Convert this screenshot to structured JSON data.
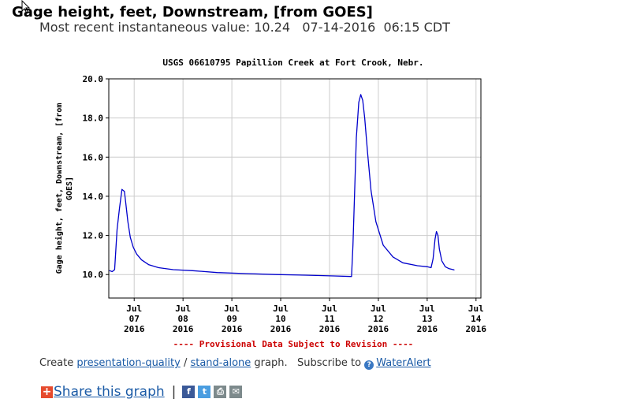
{
  "page": {
    "title": "Gage height, feet, Downstream, [from GOES]",
    "recent_label": "Most recent instantaneous value:",
    "recent_value": "10.24",
    "recent_date": "07-14-2016",
    "recent_time": "06:15 CDT"
  },
  "chart_data": {
    "type": "line",
    "title": "USGS 06610795 Papillion Creek at Fort Crook, Nebr.",
    "ylabel_lines": [
      "Gage height, feet, Downstream, [from",
      "GOES]"
    ],
    "ylim": [
      8.8,
      20.0
    ],
    "yticks": [
      "20.0",
      "18.0",
      "16.0",
      "14.0",
      "12.0",
      "10.0"
    ],
    "ytick_values": [
      20,
      18,
      16,
      14,
      12,
      10
    ],
    "xlim": [
      -0.02,
      7.6
    ],
    "xticks": [
      {
        "pos": 0.5,
        "month": "Jul",
        "day": "07",
        "year": "2016"
      },
      {
        "pos": 1.5,
        "month": "Jul",
        "day": "08",
        "year": "2016"
      },
      {
        "pos": 2.5,
        "month": "Jul",
        "day": "09",
        "year": "2016"
      },
      {
        "pos": 3.5,
        "month": "Jul",
        "day": "10",
        "year": "2016"
      },
      {
        "pos": 4.5,
        "month": "Jul",
        "day": "11",
        "year": "2016"
      },
      {
        "pos": 5.5,
        "month": "Jul",
        "day": "12",
        "year": "2016"
      },
      {
        "pos": 6.5,
        "month": "Jul",
        "day": "13",
        "year": "2016"
      },
      {
        "pos": 7.5,
        "month": "Jul",
        "day": "14",
        "year": "2016"
      }
    ],
    "grid": true,
    "provisional_note": "---- Provisional Data Subject to Revision ----",
    "line_color": "#0000cc",
    "series": [
      {
        "x": [
          0.0,
          0.05,
          0.1,
          0.15,
          0.2,
          0.25,
          0.3,
          0.33,
          0.37,
          0.42,
          0.48,
          0.55,
          0.65,
          0.8,
          1.0,
          1.3,
          1.7,
          2.2,
          2.8,
          3.4,
          4.0,
          4.6,
          4.95,
          4.98,
          5.05,
          5.1,
          5.14,
          5.18,
          5.22,
          5.28,
          5.35,
          5.45,
          5.6,
          5.8,
          6.0,
          6.3,
          6.5,
          6.58,
          6.62,
          6.66,
          6.69,
          6.72,
          6.75,
          6.8,
          6.87,
          6.95,
          7.05
        ],
        "y": [
          10.2,
          10.15,
          10.25,
          12.3,
          13.4,
          14.35,
          14.25,
          13.6,
          12.7,
          11.9,
          11.4,
          11.05,
          10.75,
          10.5,
          10.35,
          10.25,
          10.2,
          10.1,
          10.05,
          10.0,
          9.97,
          9.93,
          9.9,
          11.5,
          17.0,
          18.8,
          19.2,
          18.9,
          18.0,
          16.2,
          14.3,
          12.7,
          11.5,
          10.9,
          10.6,
          10.45,
          10.4,
          10.35,
          10.8,
          11.8,
          12.2,
          12.0,
          11.3,
          10.7,
          10.4,
          10.3,
          10.24
        ]
      }
    ]
  },
  "footer": {
    "create_label": "Create",
    "presentation_link": "presentation-quality",
    "slash": "/",
    "standalone_link": "stand-alone",
    "graph_label": "graph.",
    "subscribe_label": "Subscribe to",
    "help_glyph": "?",
    "wateralert_link": "WaterAlert"
  },
  "share": {
    "plus_glyph": "+",
    "link_label": "Share this graph",
    "separator": "|",
    "facebook_glyph": "f",
    "twitter_glyph": "t",
    "print_glyph": "⎙",
    "email_glyph": "✉"
  }
}
